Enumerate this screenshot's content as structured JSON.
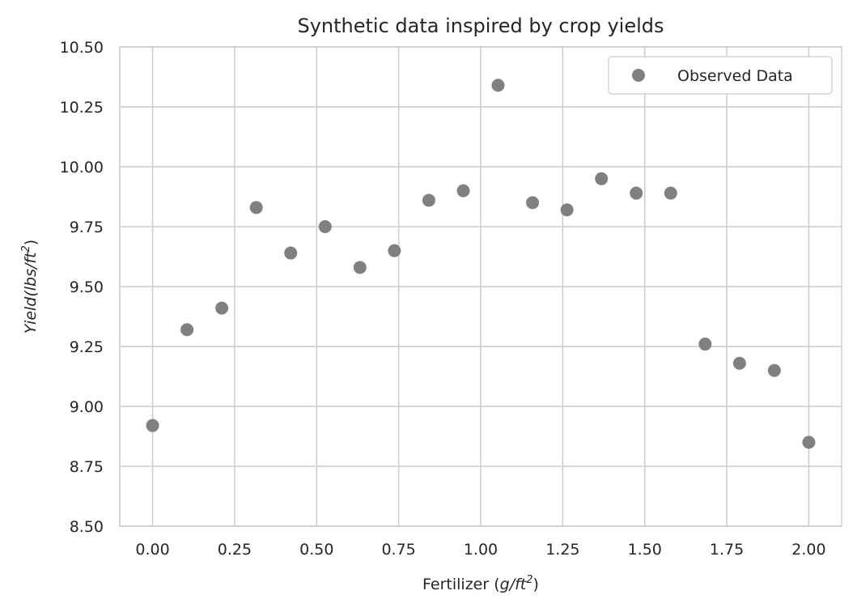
{
  "chart_data": {
    "type": "scatter",
    "title": "Synthetic data inspired by crop yields",
    "xlabel": {
      "prefix": "Fertilizer (",
      "var": "g/ft",
      "sup": "2",
      "suffix": ")"
    },
    "ylabel": {
      "var": "Yield(lbs/ft",
      "sup": "2",
      "suffix": ")"
    },
    "xlim": [
      -0.1,
      2.1
    ],
    "ylim": [
      8.5,
      10.5
    ],
    "x_ticks": [
      "0.00",
      "0.25",
      "0.50",
      "0.75",
      "1.00",
      "1.25",
      "1.50",
      "1.75",
      "2.00"
    ],
    "y_ticks": [
      "8.50",
      "8.75",
      "9.00",
      "9.25",
      "9.50",
      "9.75",
      "10.00",
      "10.25",
      "10.50"
    ],
    "grid": true,
    "legend_position": "top-right",
    "series": [
      {
        "name": "Observed Data",
        "color": "#808080",
        "x": [
          0.0,
          0.105,
          0.211,
          0.316,
          0.421,
          0.526,
          0.632,
          0.737,
          0.842,
          0.947,
          1.053,
          1.158,
          1.263,
          1.368,
          1.474,
          1.579,
          1.684,
          1.789,
          1.895,
          2.0
        ],
        "y": [
          8.92,
          9.32,
          9.41,
          9.83,
          9.64,
          9.75,
          9.58,
          9.65,
          9.86,
          9.9,
          10.34,
          9.85,
          9.82,
          9.95,
          9.89,
          9.89,
          9.26,
          9.18,
          9.15,
          8.85
        ]
      }
    ]
  }
}
